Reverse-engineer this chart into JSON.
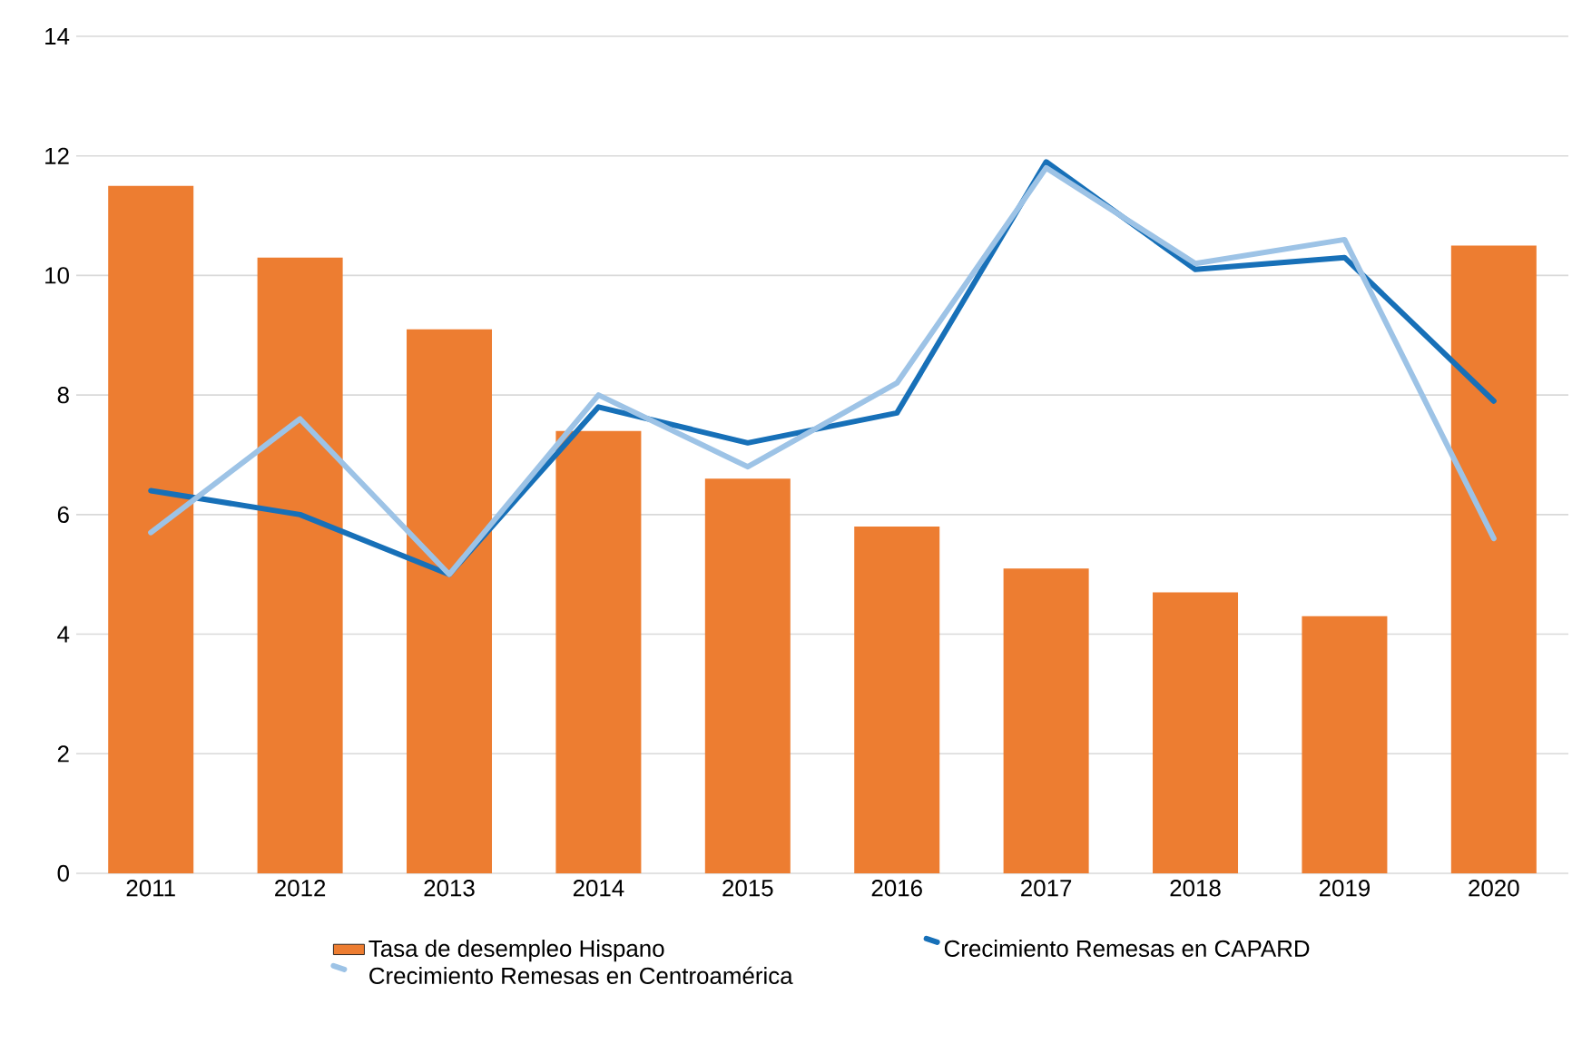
{
  "chart_data": {
    "type": "bar",
    "categories": [
      "2011",
      "2012",
      "2013",
      "2014",
      "2015",
      "2016",
      "2017",
      "2018",
      "2019",
      "2020"
    ],
    "series": [
      {
        "name": "Tasa de desempleo Hispano",
        "color": "#ed7d31",
        "values": [
          11.5,
          10.3,
          9.1,
          7.4,
          6.6,
          5.8,
          5.1,
          4.7,
          4.3,
          10.5
        ]
      },
      {
        "name": "Crecimiento Remesas en CAPARD",
        "type": "line",
        "color": "#1770b8",
        "values": [
          6.4,
          6.0,
          5.0,
          7.8,
          7.2,
          7.7,
          11.9,
          10.1,
          10.3,
          7.9
        ]
      },
      {
        "name": "Crecimiento Remesas en Centroamérica",
        "type": "line",
        "color": "#9dc3e6",
        "values": [
          5.7,
          7.6,
          5.0,
          8.0,
          6.8,
          8.2,
          11.8,
          10.2,
          10.6,
          5.6
        ]
      }
    ],
    "ylim": [
      0,
      14
    ],
    "yticks": [
      0,
      2,
      4,
      6,
      8,
      10,
      12,
      14
    ],
    "grid": "y",
    "legend": "bottom",
    "marker": "none",
    "line_style": "solid"
  }
}
